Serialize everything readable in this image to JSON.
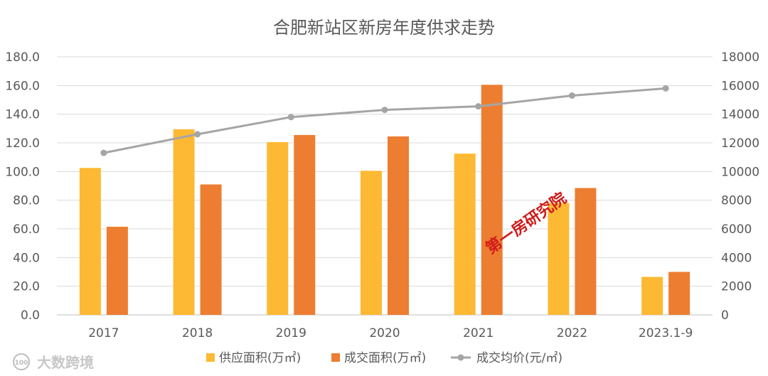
{
  "chart_data": {
    "type": "bar",
    "title": "合肥新站区新房年度供求走势",
    "categories": [
      "2017",
      "2018",
      "2019",
      "2020",
      "2021",
      "2022",
      "2023.1-9"
    ],
    "series": [
      {
        "name": "供应面积(万㎡)",
        "type": "bar",
        "axis": "left",
        "color": "#FDB933",
        "values": [
          102.5,
          129.5,
          120.5,
          100.5,
          112.5,
          78.0,
          26.5
        ]
      },
      {
        "name": "成交面积(万㎡)",
        "type": "bar",
        "axis": "left",
        "color": "#ED7D31",
        "values": [
          61.5,
          91.0,
          125.5,
          124.5,
          160.5,
          88.5,
          30.0
        ]
      },
      {
        "name": "成交均价(元/㎡)",
        "type": "line",
        "axis": "right",
        "color": "#A5A5A5",
        "values": [
          11300,
          12600,
          13800,
          14300,
          14550,
          15300,
          15800
        ]
      }
    ],
    "y_left": {
      "min": 0,
      "max": 180,
      "step": 20,
      "ticks": [
        "0.0",
        "20.0",
        "40.0",
        "60.0",
        "80.0",
        "100.0",
        "120.0",
        "140.0",
        "160.0",
        "180.0"
      ]
    },
    "y_right": {
      "min": 0,
      "max": 18000,
      "step": 2000,
      "ticks": [
        "0",
        "2000",
        "4000",
        "6000",
        "8000",
        "10000",
        "12000",
        "14000",
        "16000",
        "18000"
      ]
    },
    "grid": true,
    "legend_position": "bottom"
  },
  "watermark": {
    "center_text": "第一房研究院",
    "corner_text": "大数跨境",
    "corner_logo": "100"
  }
}
